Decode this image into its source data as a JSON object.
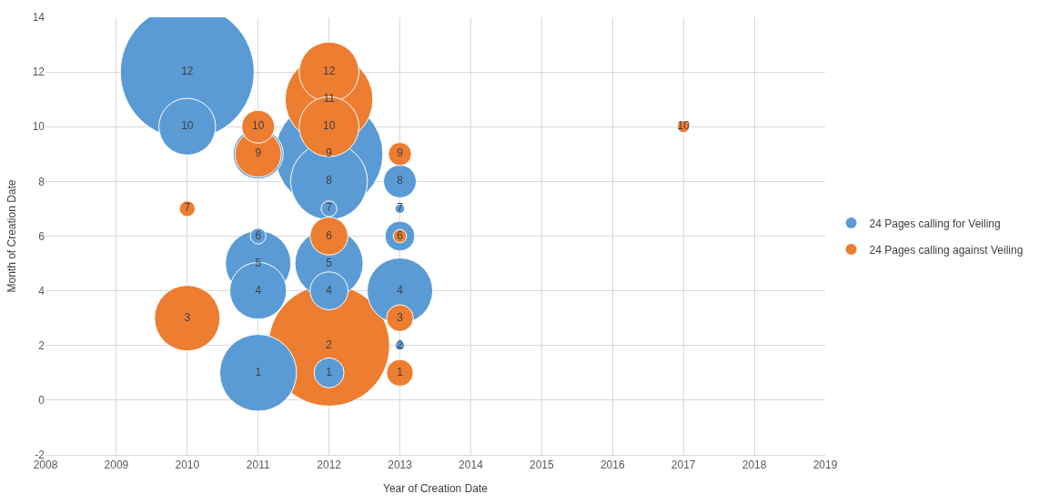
{
  "chart_data": {
    "type": "bubble",
    "xlabel": "Year of Creation Date",
    "ylabel": "Month of Creation Date",
    "xlim": [
      2008,
      2019
    ],
    "xticks": [
      2008,
      2009,
      2010,
      2011,
      2012,
      2013,
      2014,
      2015,
      2016,
      2017,
      2018,
      2019
    ],
    "ylim": [
      -2,
      14
    ],
    "yticks": [
      -2,
      0,
      2,
      4,
      6,
      8,
      10,
      12,
      14
    ],
    "grid": true,
    "legend": "right",
    "data_labels": true,
    "series": [
      {
        "name": "24 Pages calling for Veiling",
        "color": "#5b9bd5",
        "x": [
          2010,
          2010,
          2011,
          2011,
          2011,
          2011,
          2011,
          2012,
          2012,
          2012,
          2012,
          2012,
          2012,
          2013,
          2013,
          2013,
          2013,
          2013
        ],
        "values": [
          12,
          10,
          9,
          6,
          5,
          4,
          1,
          9,
          8,
          7,
          5,
          4,
          1,
          8,
          7,
          6,
          4,
          2
        ],
        "value_labels": [
          "12",
          "10",
          null,
          "6",
          "5",
          "4",
          "1",
          "9",
          "8",
          "7",
          "5",
          "4",
          "1",
          "8",
          "7",
          null,
          "4",
          "2"
        ],
        "sizes": [
          1,
          0.18,
          0.14,
          0.014,
          0.24,
          0.18,
          0.33,
          0.65,
          0.33,
          0.014,
          0.26,
          0.08,
          0.05,
          0.06,
          0.005,
          0.05,
          0.24,
          0.005
        ]
      },
      {
        "name": "24 Pages calling against Veiling",
        "color": "#ed7d31",
        "x": [
          2010,
          2010,
          2011,
          2011,
          2012,
          2012,
          2012,
          2012,
          2012,
          2013,
          2013,
          2013,
          2013,
          2017
        ],
        "values": [
          7,
          3,
          10,
          9,
          11,
          12,
          10,
          6,
          2,
          9,
          6,
          3,
          1,
          10
        ],
        "sizes": [
          0.014,
          0.24,
          0.06,
          0.12,
          0.43,
          0.2,
          0.2,
          0.08,
          0.82,
          0.03,
          0.01,
          0.04,
          0.04,
          0.008
        ]
      }
    ]
  }
}
